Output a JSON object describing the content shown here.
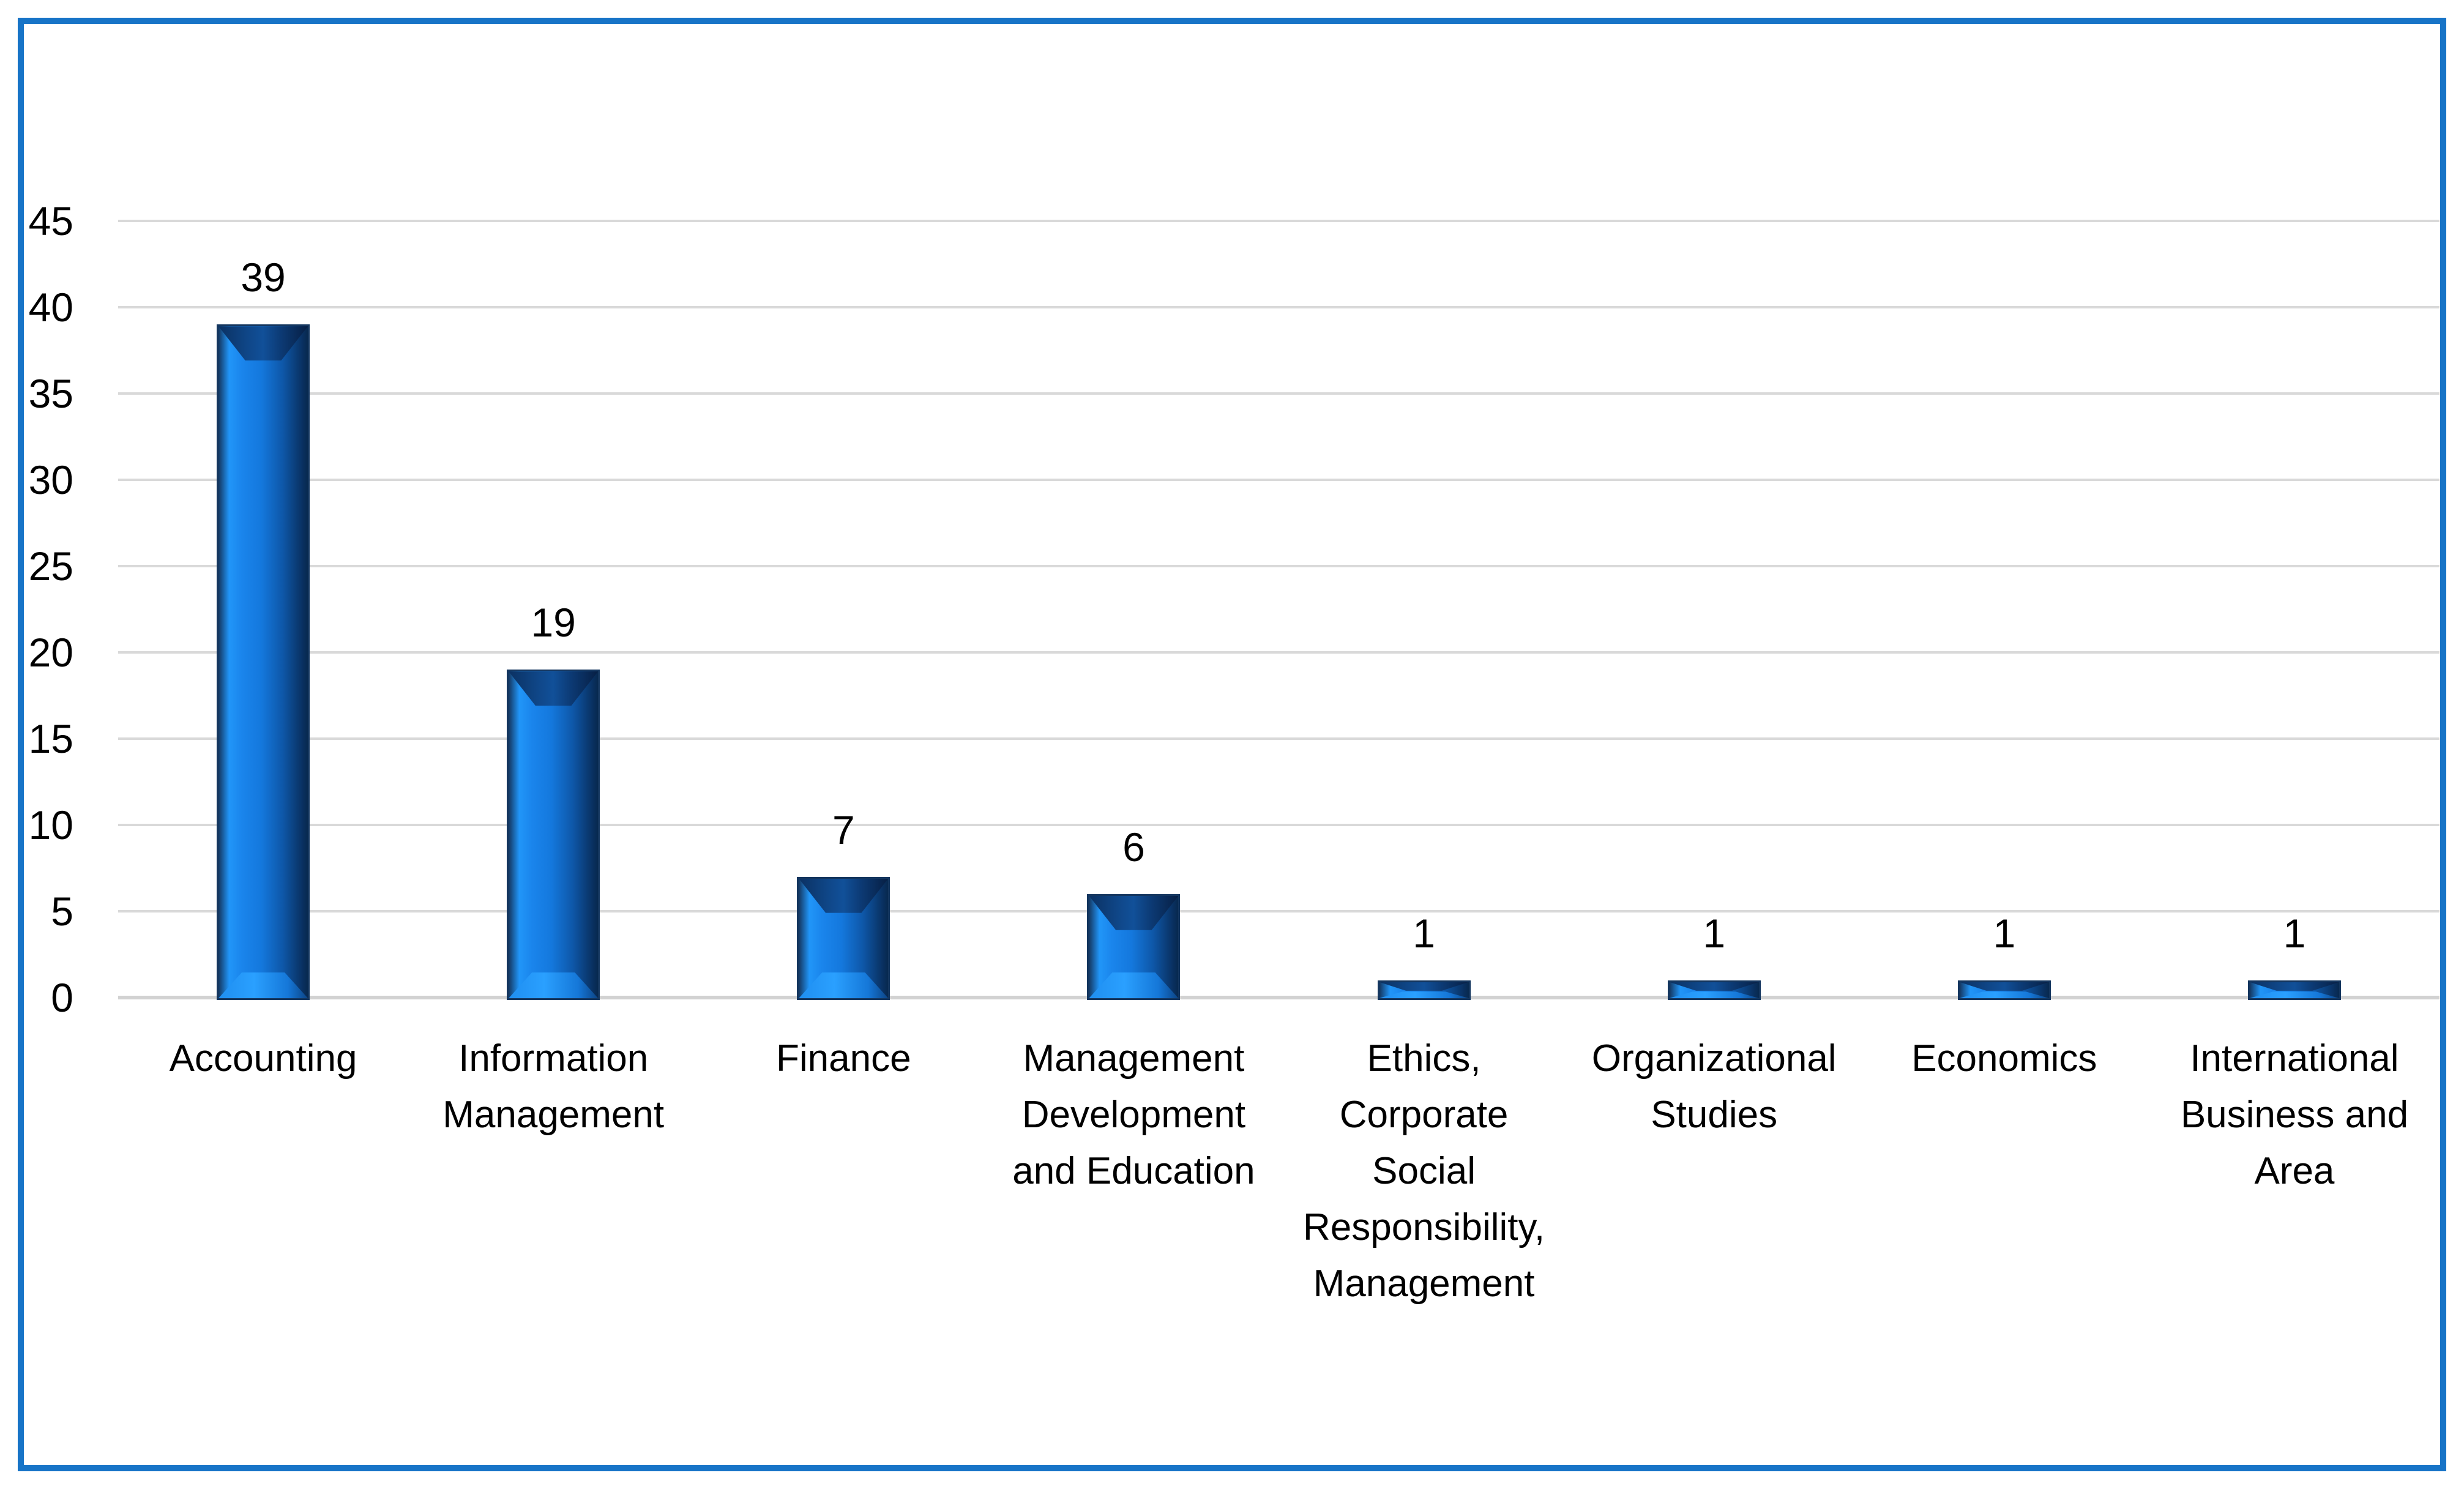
{
  "chart_data": {
    "type": "bar",
    "title": "",
    "xlabel": "",
    "ylabel": "",
    "categories": [
      "Accounting",
      "Information\nManagement",
      "Finance",
      "Management\nDevelopment\nand Education",
      "Ethics,\nCorporate\nSocial\nResponsibility,\nManagement",
      "Organizational\nStudies",
      "Economics",
      "International\nBusiness and\nArea"
    ],
    "values": [
      39,
      19,
      7,
      6,
      1,
      1,
      1,
      1
    ],
    "data_labels": [
      "39",
      "19",
      "7",
      "6",
      "1",
      "1",
      "1",
      "1"
    ],
    "ylim": [
      0,
      45
    ],
    "yticks": [
      0,
      5,
      10,
      15,
      20,
      25,
      30,
      35,
      40,
      45
    ],
    "grid": true,
    "legend": false
  },
  "colors": {
    "background": "#FFFFFF",
    "frame_border": "#1774C7",
    "gridline": "#D9D9D9",
    "axis_line": "#D2D2D2",
    "bar_highlight": "#2196F8",
    "bar_mid": "#1478DD",
    "bar_dark": "#092F5E",
    "bar_edge": "#14365F",
    "text": "#000000"
  }
}
